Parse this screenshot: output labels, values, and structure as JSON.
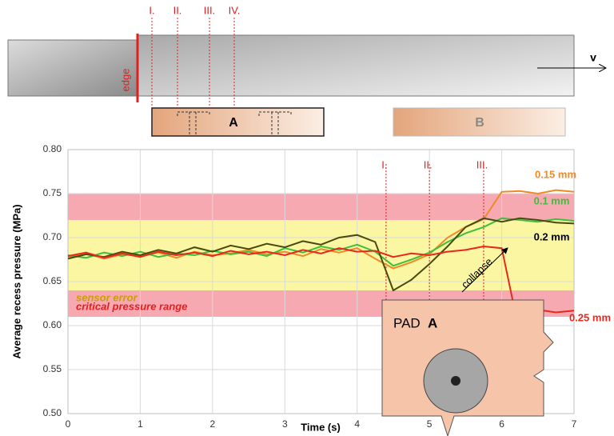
{
  "schematic": {
    "markers": [
      "I.",
      "II.",
      "III.",
      "IV."
    ],
    "edge": "edge",
    "velocity": "v",
    "pads": [
      "A",
      "B"
    ]
  },
  "chart_data": {
    "type": "line",
    "ylabel": "Average recess pressure (MPa)",
    "xlabel": "Time (s)",
    "xlim": [
      0,
      7
    ],
    "xticks": [
      0,
      1,
      2,
      3,
      4,
      5,
      6,
      7
    ],
    "ylim": [
      0.5,
      0.8
    ],
    "yticks": [
      {
        "value": 0.5,
        "label": "0.50"
      },
      0.55,
      {
        "value": 0.6,
        "label": "0.60"
      },
      0.65,
      {
        "value": 0.7,
        "label": "0.70"
      },
      0.75,
      {
        "value": 0.8,
        "label": "0.80"
      }
    ],
    "grid": true,
    "bands": [
      {
        "name": "critical pressure range",
        "color": "#f7a9b2",
        "ranges": [
          [
            0.61,
            0.64
          ],
          [
            0.72,
            0.75
          ]
        ]
      },
      {
        "name": "sensor error",
        "color": "#fbf6a2",
        "ranges": [
          [
            0.64,
            0.72
          ]
        ]
      }
    ],
    "markers": [
      {
        "label": "I.",
        "x": 4.4
      },
      {
        "label": "II.",
        "x": 5.0
      },
      {
        "label": "III.",
        "x": 5.75
      }
    ],
    "annotation": "collapse",
    "pad_label": {
      "prefix": "PAD",
      "name": "A"
    },
    "x": [
      0,
      0.25,
      0.5,
      0.75,
      1,
      1.25,
      1.5,
      1.75,
      2,
      2.25,
      2.5,
      2.75,
      3,
      3.25,
      3.5,
      3.75,
      4,
      4.25,
      4.5,
      4.75,
      5,
      5.25,
      5.5,
      5.75,
      6,
      6.25,
      6.5,
      6.75,
      7
    ],
    "series": [
      {
        "name": "0.15 mm",
        "color": "#f08a24",
        "values": [
          0.678,
          0.682,
          0.676,
          0.681,
          0.679,
          0.683,
          0.677,
          0.684,
          0.68,
          0.682,
          0.686,
          0.681,
          0.684,
          0.679,
          0.687,
          0.683,
          0.688,
          0.676,
          0.665,
          0.672,
          0.681,
          0.7,
          0.712,
          0.721,
          0.752,
          0.753,
          0.75,
          0.754,
          0.752
        ]
      },
      {
        "name": "0.1 mm",
        "color": "#3cbf3c",
        "values": [
          0.68,
          0.677,
          0.683,
          0.679,
          0.684,
          0.678,
          0.682,
          0.68,
          0.685,
          0.681,
          0.684,
          0.679,
          0.688,
          0.683,
          0.69,
          0.686,
          0.692,
          0.684,
          0.668,
          0.675,
          0.683,
          0.695,
          0.705,
          0.712,
          0.722,
          0.72,
          0.718,
          0.721,
          0.719
        ]
      },
      {
        "name": "0.2 mm",
        "color": "#4a4a10",
        "values": [
          0.676,
          0.681,
          0.678,
          0.684,
          0.68,
          0.686,
          0.682,
          0.689,
          0.684,
          0.691,
          0.687,
          0.693,
          0.689,
          0.696,
          0.692,
          0.7,
          0.703,
          0.695,
          0.64,
          0.652,
          0.67,
          0.69,
          0.712,
          0.722,
          0.718,
          0.722,
          0.72,
          0.717,
          0.716
        ]
      },
      {
        "name": "0.25 mm",
        "color": "#e8281e",
        "values": [
          0.679,
          0.683,
          0.677,
          0.682,
          0.678,
          0.684,
          0.68,
          0.683,
          0.679,
          0.685,
          0.681,
          0.684,
          0.68,
          0.686,
          0.682,
          0.688,
          0.684,
          0.685,
          0.678,
          0.682,
          0.68,
          0.684,
          0.686,
          0.69,
          0.688,
          0.59,
          0.618,
          0.615,
          0.617
        ]
      }
    ]
  }
}
